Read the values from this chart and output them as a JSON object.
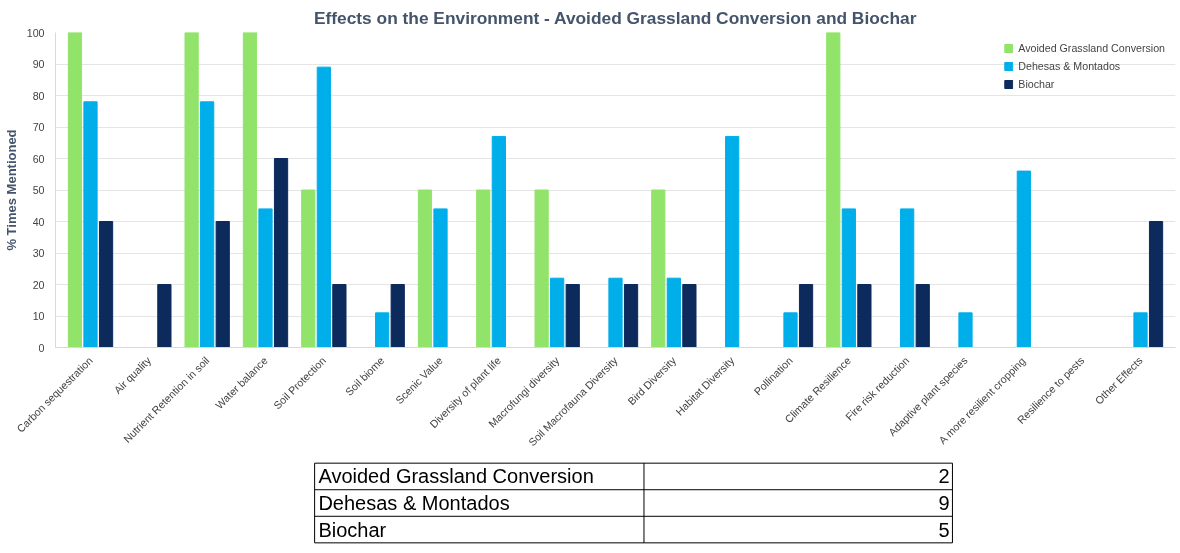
{
  "chart_data": [
    {
      "type": "bar",
      "title": "Effects on the Environment - Avoided Grassland Conversion and Biochar",
      "ylabel": "% Times Mentioned",
      "categories": [
        "Carbon sequestration",
        "Air quality",
        "Nutrient Retention in soil",
        "Water balance",
        "Soil Protection",
        "Soil biome",
        "Scenic Value",
        "Diversity of plant life",
        "Macrofungi diversity",
        "Soil Macrofauna Diversity",
        "Bird Diversity",
        "Habitat Diversity",
        "Pollination",
        "Climate Resilience",
        "Fire risk reduction",
        "Adaptive plant species",
        "A more resilient cropping",
        "Resilience to pests",
        "Other Effects"
      ],
      "series": [
        {
          "name": "Avoided Grassland Conversion",
          "color": "#92e36a",
          "values": [
            100,
            0,
            100,
            100,
            50,
            0,
            50,
            50,
            50,
            0,
            50,
            0,
            0,
            100,
            0,
            0,
            0,
            0,
            0
          ]
        },
        {
          "name": "Dehesas & Montados",
          "color": "#00aeea",
          "values": [
            78,
            0,
            78,
            44,
            89,
            11,
            44,
            67,
            22,
            22,
            22,
            67,
            11,
            44,
            44,
            11,
            56,
            0,
            11
          ]
        },
        {
          "name": "Biochar",
          "color": "#0c2a5c",
          "values": [
            40,
            20,
            40,
            60,
            20,
            20,
            0,
            0,
            20,
            20,
            20,
            0,
            20,
            20,
            20,
            0,
            0,
            0,
            40
          ]
        }
      ],
      "ylim": [
        0,
        100
      ],
      "yticks": [
        0,
        10,
        20,
        30,
        40,
        50,
        60,
        70,
        80,
        90,
        100
      ],
      "grid": "y",
      "legend": "top right"
    },
    {
      "type": "other",
      "categories": [
        "Avoided Grassland Conversion",
        "Dehesas & Montados",
        "Biochar"
      ],
      "values": [
        2,
        9,
        5
      ],
      "data_labels": true
    }
  ]
}
